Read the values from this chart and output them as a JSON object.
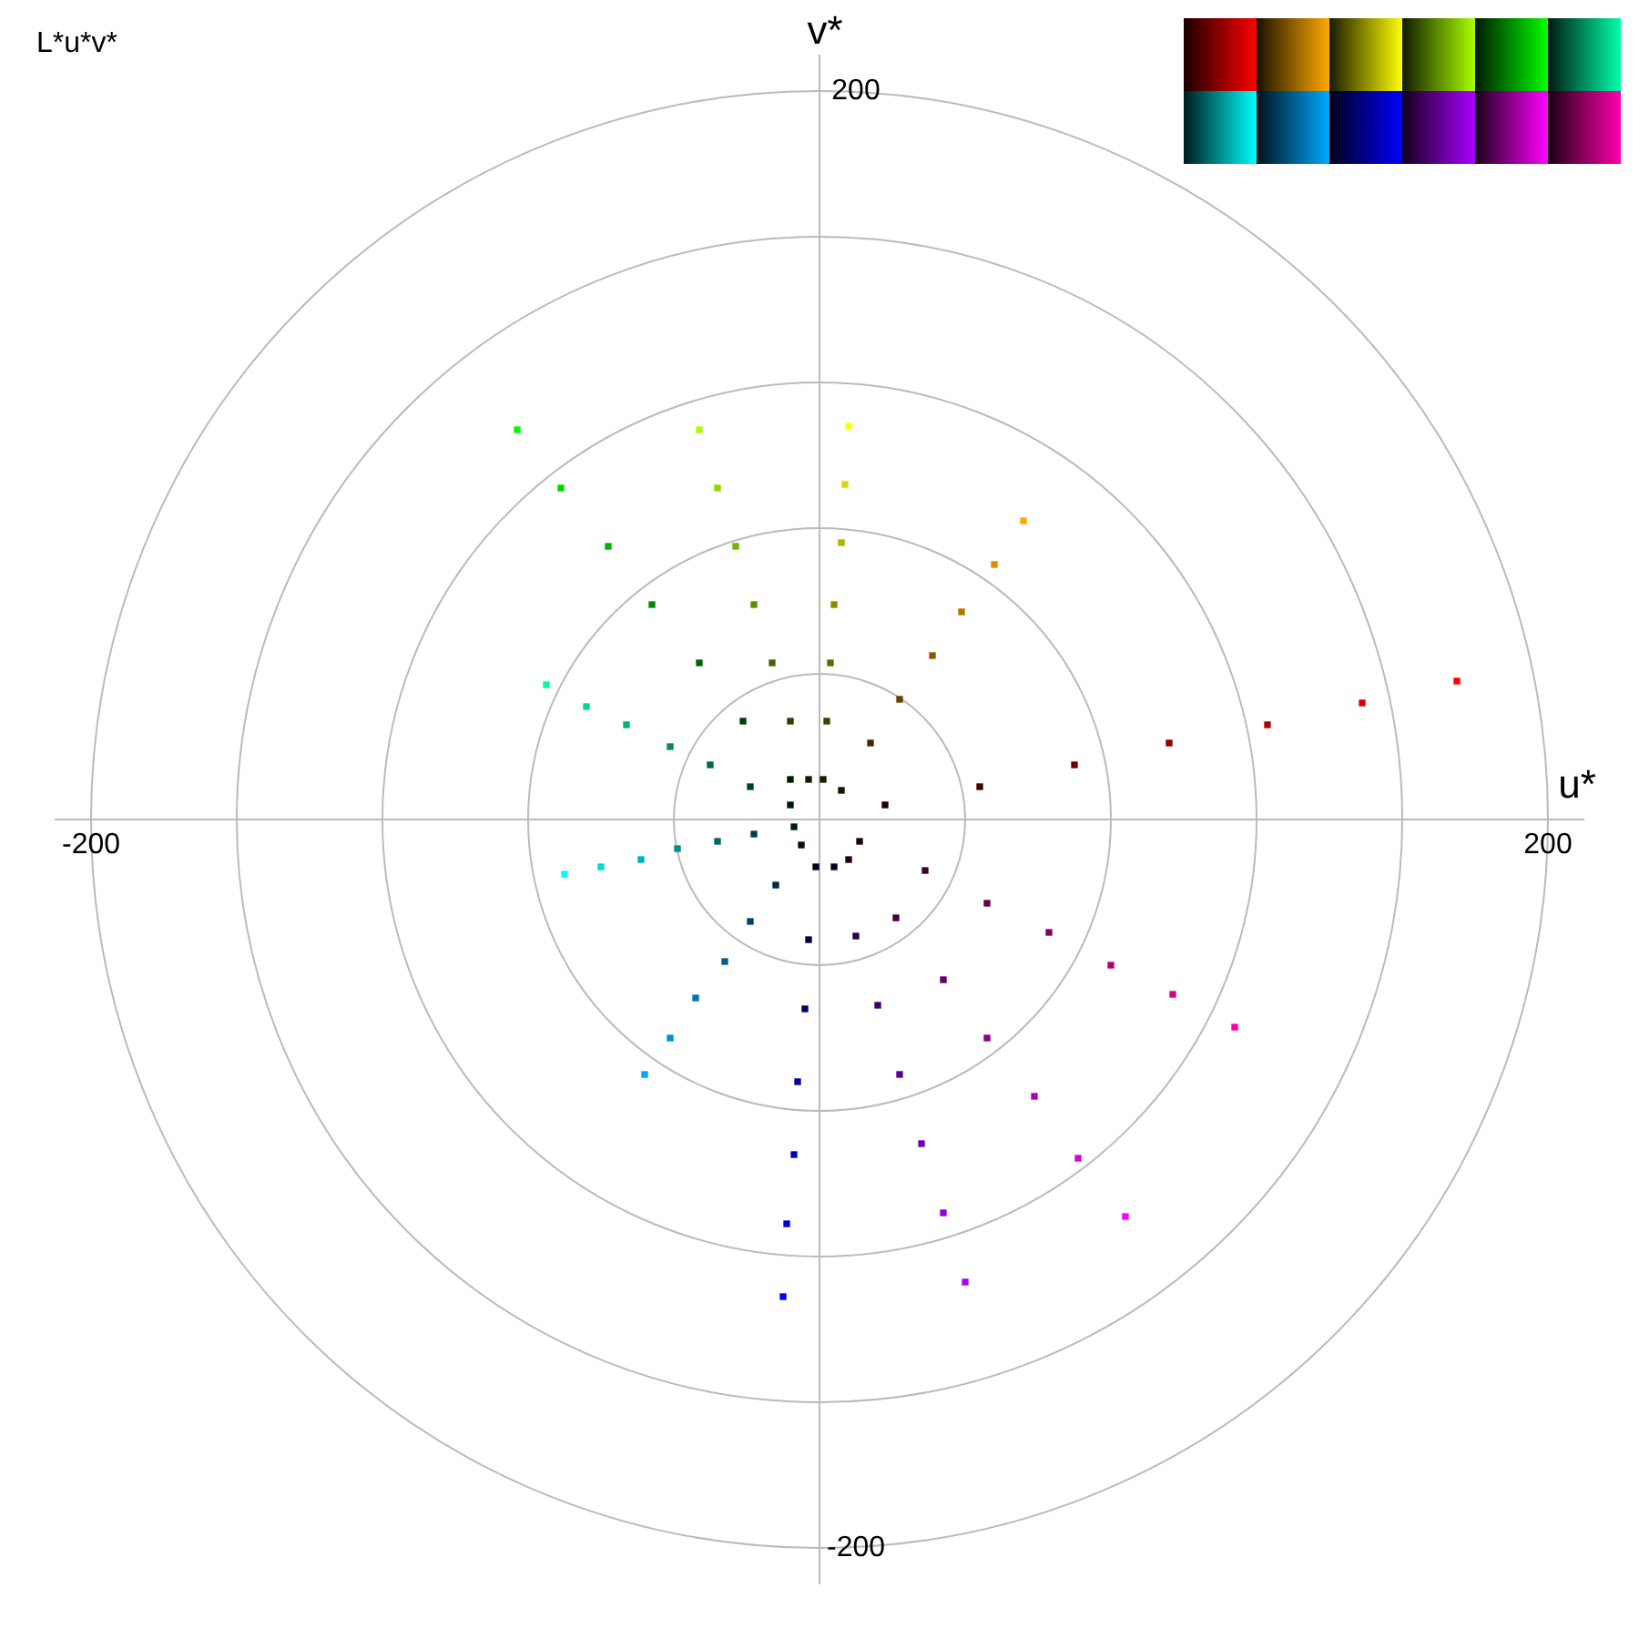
{
  "chart_data": {
    "type": "scatter",
    "title": "L*u*v*",
    "xlabel": "u*",
    "ylabel": "v*",
    "xlim": [
      -210,
      210
    ],
    "ylim": [
      -210,
      210
    ],
    "xticks": [
      -200,
      {
        "value": -160,
        "label": null
      },
      {
        "value": -120,
        "label": null
      },
      {
        "value": -80,
        "label": null
      },
      {
        "value": -40,
        "label": null
      },
      {
        "value": 40,
        "label": null
      },
      {
        "value": 80,
        "label": null
      },
      {
        "value": 120,
        "label": null
      },
      {
        "value": 160,
        "label": null
      },
      200
    ],
    "yticks": [
      -200,
      {
        "value": -160,
        "label": null
      },
      {
        "value": -120,
        "label": null
      },
      {
        "value": -80,
        "label": null
      },
      {
        "value": -40,
        "label": null
      },
      {
        "value": 40,
        "label": null
      },
      {
        "value": 80,
        "label": null
      },
      {
        "value": 120,
        "label": null
      },
      {
        "value": 160,
        "label": null
      },
      200
    ],
    "legend": false,
    "marker": "square",
    "series": [
      {
        "x": [
          18,
          44,
          70,
          96,
          123,
          149,
          175
        ],
        "values": [
          4,
          9,
          15,
          21,
          26,
          32,
          38
        ],
        "colors": [
          "#1a0000",
          "#400000",
          "#660000",
          "#8c0000",
          "#b30000",
          "#d90000",
          "#ff0000"
        ]
      },
      {
        "x": [
          6,
          14,
          22,
          31,
          39,
          48,
          56
        ],
        "values": [
          8,
          21,
          33,
          45,
          57,
          70,
          82
        ],
        "colors": [
          "#1a1100",
          "#402a00",
          "#664400",
          "#8c5d00",
          "#b37700",
          "#d99000",
          "#ffaa00"
        ]
      },
      {
        "x": [
          1,
          2,
          3,
          4,
          6,
          7,
          8
        ],
        "values": [
          11,
          27,
          43,
          59,
          76,
          92,
          108
        ],
        "colors": [
          "#1a1a00",
          "#404000",
          "#666600",
          "#8c8c00",
          "#b3b300",
          "#d9d900",
          "#ffff00"
        ]
      },
      {
        "x": [
          -3,
          -8,
          -13,
          -18,
          -23,
          -28,
          -33
        ],
        "values": [
          11,
          27,
          43,
          59,
          75,
          91,
          107
        ],
        "colors": [
          "#111a00",
          "#2a4000",
          "#446600",
          "#5d8c00",
          "#77b300",
          "#90d900",
          "#aaff00"
        ]
      },
      {
        "x": [
          -8,
          -21,
          -33,
          -46,
          -58,
          -71,
          -83
        ],
        "values": [
          11,
          27,
          43,
          59,
          75,
          91,
          107
        ],
        "colors": [
          "#001a00",
          "#004000",
          "#006600",
          "#008c00",
          "#00b300",
          "#00d900",
          "#00ff00"
        ]
      },
      {
        "x": [
          -8,
          -19,
          -30,
          -41,
          -53,
          -64,
          -75
        ],
        "values": [
          4,
          9,
          15,
          20,
          26,
          31,
          37
        ],
        "colors": [
          "#001a11",
          "#00402a",
          "#006644",
          "#008c5d",
          "#00b377",
          "#00d990",
          "#00ffaa"
        ]
      },
      {
        "x": [
          -7,
          -18,
          -28,
          -39,
          -49,
          -60,
          -70
        ],
        "values": [
          -2,
          -4,
          -6,
          -8,
          -11,
          -13,
          -15
        ],
        "colors": [
          "#001a1a",
          "#004040",
          "#006666",
          "#008c8c",
          "#00b3b3",
          "#00d9d9",
          "#00ffff"
        ]
      },
      {
        "x": [
          -5,
          -12,
          -19,
          -26,
          -34,
          -41,
          -48
        ],
        "values": [
          -7,
          -18,
          -28,
          -39,
          -49,
          -60,
          -70
        ],
        "colors": [
          "#00111a",
          "#002a40",
          "#004466",
          "#005d8c",
          "#0077b3",
          "#0090d9",
          "#00aaff"
        ]
      },
      {
        "x": [
          -1,
          -3,
          -4,
          -6,
          -7,
          -9,
          -10
        ],
        "values": [
          -13,
          -33,
          -52,
          -72,
          -92,
          -111,
          -131
        ],
        "colors": [
          "#00001a",
          "#000040",
          "#000066",
          "#00008c",
          "#0000b3",
          "#0000d9",
          "#0000ff"
        ]
      },
      {
        "x": [
          4,
          10,
          16,
          22,
          28,
          34,
          40
        ],
        "values": [
          -13,
          -32,
          -51,
          -70,
          -89,
          -108,
          -127
        ],
        "colors": [
          "#11001a",
          "#2a0040",
          "#440066",
          "#5d008c",
          "#7700b3",
          "#9000d9",
          "#aa00ff"
        ]
      },
      {
        "x": [
          8,
          21,
          34,
          46,
          59,
          71,
          84
        ],
        "values": [
          -11,
          -27,
          -44,
          -60,
          -76,
          -93,
          -109
        ],
        "colors": [
          "#1a001a",
          "#400040",
          "#660066",
          "#8c008c",
          "#b300b3",
          "#d900d9",
          "#ff00ff"
        ]
      },
      {
        "x": [
          11,
          29,
          46,
          63,
          80,
          97,
          114
        ],
        "values": [
          -6,
          -14,
          -23,
          -31,
          -40,
          -48,
          -57
        ],
        "colors": [
          "#1a0011",
          "#40002a",
          "#660044",
          "#8c005d",
          "#b30077",
          "#d90090",
          "#ff00aa"
        ]
      }
    ]
  }
}
